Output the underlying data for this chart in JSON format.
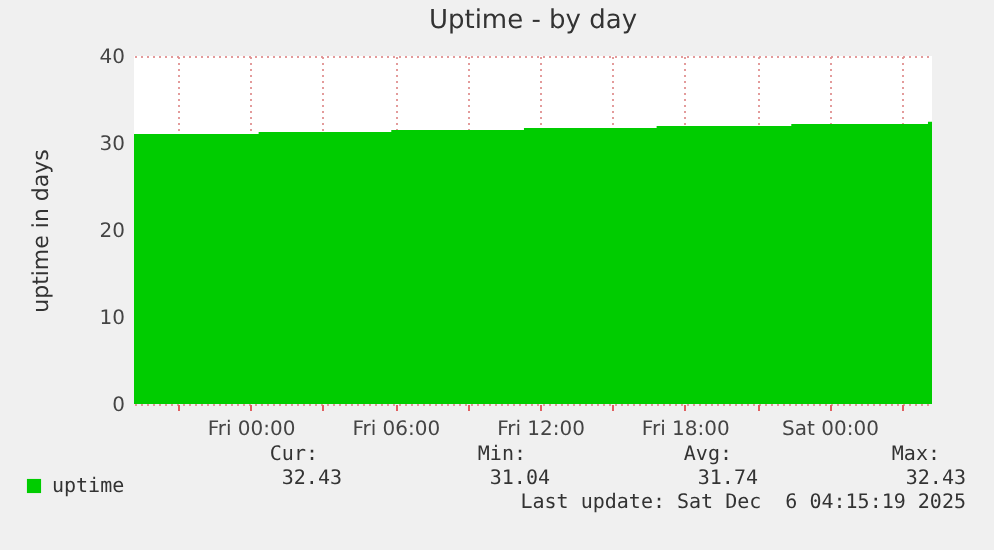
{
  "chart_data": {
    "type": "area",
    "title": "Uptime - by day",
    "ylabel": "uptime in days",
    "x": [
      "2025-12-04T19:10",
      "2025-12-05T00:20",
      "2025-12-05T00:20",
      "2025-12-05T05:50",
      "2025-12-05T05:50",
      "2025-12-05T11:20",
      "2025-12-05T11:20",
      "2025-12-05T16:50",
      "2025-12-05T16:50",
      "2025-12-05T22:25",
      "2025-12-05T22:25",
      "2025-12-06T04:05",
      "2025-12-06T04:05",
      "2025-12-06T04:15"
    ],
    "series": [
      {
        "name": "uptime",
        "color": "#00cc00",
        "values": [
          31.04,
          31.04,
          31.27,
          31.27,
          31.5,
          31.5,
          31.73,
          31.73,
          31.96,
          31.96,
          32.19,
          32.19,
          32.43,
          32.43
        ]
      }
    ],
    "xlim": [
      "2025-12-04T19:10",
      "2025-12-06T04:15"
    ],
    "xticks": [
      {
        "value": "2025-12-04T21:00",
        "label": null
      },
      {
        "value": "2025-12-05T00:00",
        "label": "Fri 00:00"
      },
      {
        "value": "2025-12-05T03:00",
        "label": null
      },
      {
        "value": "2025-12-05T06:00",
        "label": "Fri 06:00"
      },
      {
        "value": "2025-12-05T09:00",
        "label": null
      },
      {
        "value": "2025-12-05T12:00",
        "label": "Fri 12:00"
      },
      {
        "value": "2025-12-05T15:00",
        "label": null
      },
      {
        "value": "2025-12-05T18:00",
        "label": "Fri 18:00"
      },
      {
        "value": "2025-12-05T21:00",
        "label": null
      },
      {
        "value": "2025-12-06T00:00",
        "label": "Sat 00:00"
      },
      {
        "value": "2025-12-06T03:00",
        "label": null
      }
    ],
    "ylim": [
      0,
      40
    ],
    "yticks": [
      0,
      10,
      20,
      30,
      40
    ],
    "grid": true,
    "legend": "bottom left",
    "annotations": [
      "Cur:",
      "Min:",
      "Avg:",
      "Max:",
      "32.43",
      "31.04",
      "31.74",
      "32.43",
      "Last update: Sat Dec  6 04:15:19 2025"
    ]
  }
}
